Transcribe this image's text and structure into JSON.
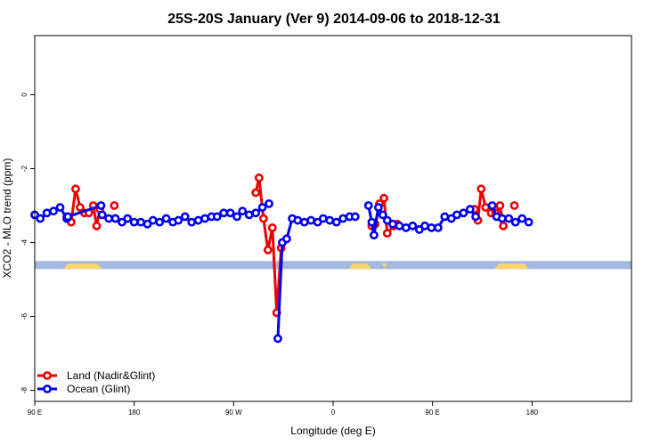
{
  "chart_data": {
    "type": "line",
    "title": "25S-20S January (Ver 9)   2014-09-06 to 2018-12-31",
    "xlabel": "Longitude (deg E)",
    "ylabel": "XCO2 - MLO trend (ppm)",
    "xlim": [
      90,
      630
    ],
    "ylim": [
      -8.3,
      1.6
    ],
    "x_ticks": [
      {
        "value": 90,
        "label": "90 E"
      },
      {
        "value": 180,
        "label": "180"
      },
      {
        "value": 270,
        "label": "90 W"
      },
      {
        "value": 360,
        "label": "0"
      },
      {
        "value": 450,
        "label": "90 E"
      },
      {
        "value": 540,
        "label": "180"
      }
    ],
    "y_ticks": [
      {
        "value": 0,
        "label": "0"
      },
      {
        "value": -2,
        "label": "-2"
      },
      {
        "value": -4,
        "label": "-4"
      },
      {
        "value": -6,
        "label": "-6"
      },
      {
        "value": -8,
        "label": "-8"
      }
    ],
    "legend_position": "bottom-left",
    "series": [
      {
        "name": "Land (Nadir&Glint)",
        "color": "#ee0000",
        "segments": [
          [
            [
              119,
              -3.3
            ],
            [
              123,
              -3.45
            ],
            [
              127,
              -2.55
            ],
            [
              131,
              -3.05
            ],
            [
              135,
              -3.2
            ],
            [
              139,
              -3.2
            ],
            [
              143,
              -3.0
            ],
            [
              146,
              -3.55
            ],
            [
              149,
              -3.1
            ]
          ],
          [
            [
              162,
              -3.0
            ]
          ],
          [
            [
              290,
              -2.65
            ],
            [
              293,
              -2.25
            ],
            [
              297,
              -3.35
            ],
            [
              301,
              -4.2
            ],
            [
              305,
              -3.6
            ],
            [
              309,
              -5.9
            ],
            [
              313,
              -4.15
            ]
          ],
          [
            [
              395,
              -3.55
            ],
            [
              398,
              -3.5
            ],
            [
              402,
              -2.95
            ],
            [
              406,
              -2.8
            ],
            [
              409,
              -3.75
            ],
            [
              415,
              -3.55
            ],
            [
              418,
              -3.5
            ]
          ],
          [
            [
              488,
              -3.1
            ],
            [
              491,
              -3.4
            ],
            [
              494,
              -2.55
            ],
            [
              498,
              -3.05
            ],
            [
              503,
              -3.2
            ],
            [
              507,
              -3.2
            ],
            [
              511,
              -3.0
            ],
            [
              514,
              -3.55
            ]
          ],
          [
            [
              524,
              -3.0
            ]
          ]
        ]
      },
      {
        "name": "Ocean (Glint)",
        "color": "#0000ee",
        "segments": [
          [
            [
              90,
              -3.25
            ],
            [
              95,
              -3.35
            ],
            [
              101,
              -3.2
            ],
            [
              107,
              -3.15
            ],
            [
              113,
              -3.05
            ],
            [
              119,
              -3.35
            ]
          ],
          [
            [
              120,
              -3.3
            ],
            [
              150,
              -3.0
            ]
          ],
          [
            [
              151,
              -3.25
            ],
            [
              157,
              -3.35
            ],
            [
              163,
              -3.35
            ],
            [
              169,
              -3.45
            ],
            [
              174,
              -3.35
            ],
            [
              180,
              -3.45
            ],
            [
              186,
              -3.45
            ],
            [
              192,
              -3.5
            ],
            [
              197,
              -3.4
            ],
            [
              203,
              -3.45
            ],
            [
              209,
              -3.35
            ],
            [
              215,
              -3.45
            ],
            [
              220,
              -3.4
            ],
            [
              226,
              -3.3
            ],
            [
              232,
              -3.45
            ],
            [
              238,
              -3.4
            ],
            [
              244,
              -3.35
            ],
            [
              250,
              -3.3
            ],
            [
              255,
              -3.3
            ],
            [
              261,
              -3.2
            ],
            [
              267,
              -3.2
            ],
            [
              273,
              -3.3
            ],
            [
              278,
              -3.15
            ],
            [
              284,
              -3.25
            ],
            [
              290,
              -3.2
            ],
            [
              296,
              -3.05
            ],
            [
              302,
              -2.95
            ]
          ],
          [
            [
              310,
              -6.6
            ],
            [
              314,
              -4.0
            ],
            [
              318,
              -3.9
            ],
            [
              323,
              -3.35
            ],
            [
              328,
              -3.4
            ],
            [
              334,
              -3.45
            ],
            [
              340,
              -3.4
            ],
            [
              346,
              -3.45
            ],
            [
              351,
              -3.35
            ],
            [
              357,
              -3.4
            ],
            [
              363,
              -3.45
            ],
            [
              369,
              -3.35
            ],
            [
              375,
              -3.3
            ],
            [
              380,
              -3.3
            ]
          ],
          [
            [
              392,
              -3.0
            ],
            [
              395,
              -3.45
            ],
            [
              397,
              -3.8
            ],
            [
              401,
              -3.05
            ],
            [
              405,
              -3.25
            ],
            [
              409,
              -3.4
            ],
            [
              414,
              -3.5
            ],
            [
              420,
              -3.55
            ],
            [
              426,
              -3.6
            ],
            [
              432,
              -3.55
            ],
            [
              438,
              -3.65
            ],
            [
              443,
              -3.55
            ],
            [
              449,
              -3.6
            ],
            [
              455,
              -3.6
            ],
            [
              461,
              -3.3
            ],
            [
              467,
              -3.35
            ],
            [
              472,
              -3.25
            ],
            [
              478,
              -3.2
            ],
            [
              484,
              -3.1
            ],
            [
              489,
              -3.3
            ]
          ],
          [
            [
              504,
              -3.0
            ],
            [
              508,
              -3.3
            ],
            [
              513,
              -3.35
            ],
            [
              519,
              -3.35
            ],
            [
              525,
              -3.45
            ],
            [
              531,
              -3.35
            ],
            [
              537,
              -3.45
            ]
          ]
        ]
      }
    ],
    "surface_band": {
      "y_range": [
        -4.5,
        -4.72
      ],
      "ocean_color": "#a3b9e0",
      "land_color": "#f9d56e",
      "land_ranges": [
        [
          116,
          151
        ],
        [
          374,
          395
        ],
        [
          405,
          408
        ],
        [
          506,
          537
        ]
      ]
    }
  }
}
